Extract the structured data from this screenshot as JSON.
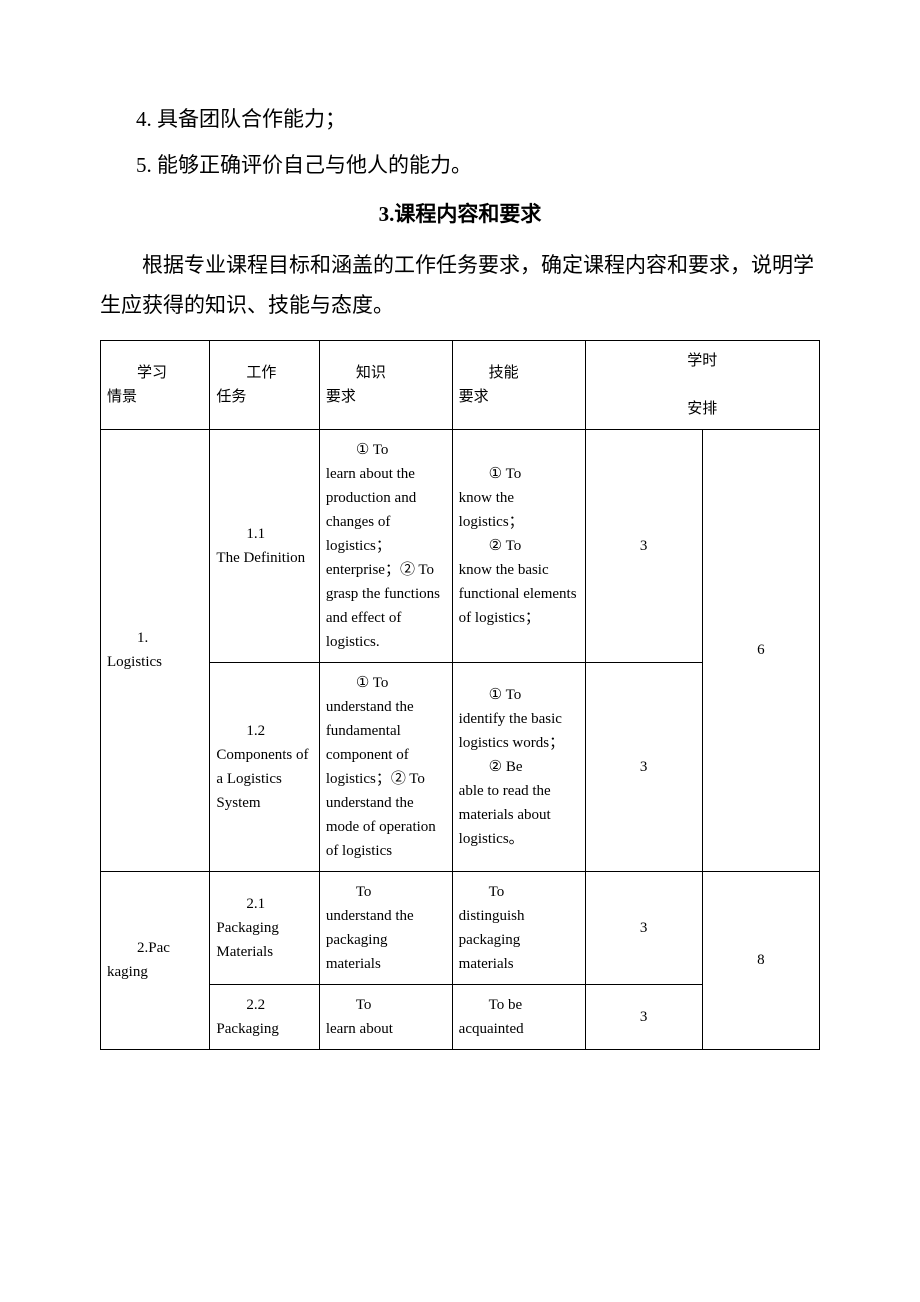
{
  "bullets": [
    "4. 具备团队合作能力；",
    "5. 能够正确评价自己与他人的能力。"
  ],
  "heading": "3.课程内容和要求",
  "intro": "根据专业课程目标和涵盖的工作任务要求，确定课程内容和要求，说明学生应获得的知识、技能与态度。",
  "headers": {
    "col0_l1": "学习",
    "col0_l2": "情景",
    "col1_l1": "工作",
    "col1_l2": "任务",
    "col2_l1": "知识",
    "col2_l2": "要求",
    "col3_l1": "技能",
    "col3_l2": "要求",
    "col4_l1": "学时",
    "col4_l2": "安排"
  },
  "rows": [
    {
      "scene_idx": "1.",
      "scene_name": "Logistics",
      "task_idx": "1.1",
      "task_name": "The Definition",
      "knowledge_first": "① To",
      "knowledge_rest": "learn about the production and changes of logistics；enterprise；② To grasp the functions and effect of logistics.",
      "skill_first": "① To",
      "skill_rest": "know the logistics；",
      "skill_first2": "② To",
      "skill_rest2": "know the basic functional elements of logistics；",
      "hours": "3",
      "scene_hours": "6"
    },
    {
      "task_idx": "1.2",
      "task_name": "Components of a Logistics System",
      "knowledge_first": "① To",
      "knowledge_rest": "understand the fundamental component of logistics；② To understand the mode of operation of logistics",
      "skill_first": "① To",
      "skill_rest": "identify the basic logistics words；",
      "skill_first2": "② Be",
      "skill_rest2": "able to read the materials about logistics。",
      "hours": "3"
    },
    {
      "scene_idx": "2.Pac",
      "scene_name": "kaging",
      "task_idx": "2.1",
      "task_name": "Packaging Materials",
      "knowledge_first": "To",
      "knowledge_rest": "understand the packaging materials",
      "skill_first": "To",
      "skill_rest": "distinguish packaging materials",
      "hours": "3",
      "scene_hours": "8"
    },
    {
      "task_idx": "2.2",
      "task_name": "Packaging",
      "knowledge_first": "To",
      "knowledge_rest": "learn about",
      "skill_first": "To be",
      "skill_rest": "acquainted",
      "hours": "3"
    }
  ]
}
